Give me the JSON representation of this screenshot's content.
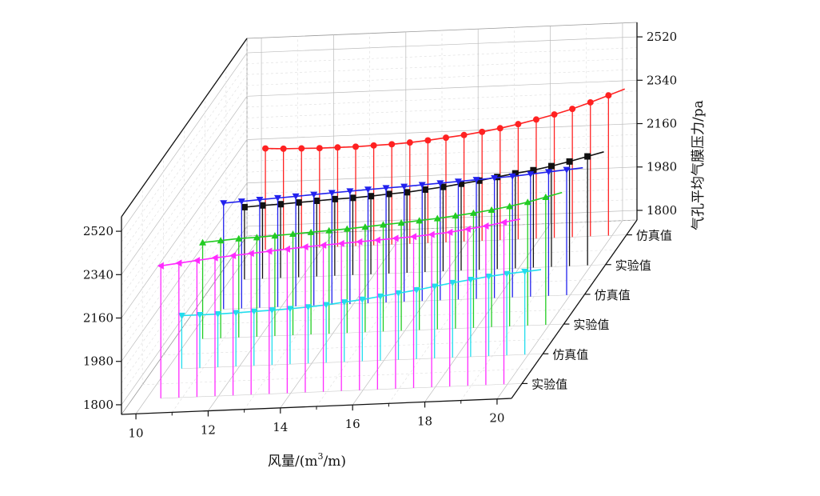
{
  "chart_data": {
    "type": "3d-drop-line",
    "xlabel": "风量/(m³/m)",
    "xlabel_main": "风量/(m",
    "xlabel_sup": "3",
    "xlabel_tail": "/m)",
    "zlabel": "气孔平均气膜压力/pa",
    "x_ticks": [
      "10",
      "12",
      "14",
      "16",
      "18",
      "20"
    ],
    "z_ticks_left": [
      "1800",
      "1980",
      "2160",
      "2340",
      "2520"
    ],
    "z_ticks_right": [
      "1800",
      "1980",
      "2160",
      "2340",
      "2520"
    ],
    "zlim": [
      1760,
      2580
    ],
    "xlim": [
      9.6,
      20.4
    ],
    "y_categories": [
      "实验值",
      "仿真值",
      "实验值",
      "仿真值",
      "实验值",
      "仿真值"
    ],
    "x": [
      10.4,
      10.9,
      11.4,
      11.9,
      12.4,
      12.9,
      13.4,
      13.9,
      14.4,
      14.9,
      15.4,
      15.9,
      16.4,
      16.9,
      17.4,
      17.9,
      18.4,
      18.9,
      19.4,
      19.9
    ],
    "series": [
      {
        "category_index": 0,
        "color": "#ff2bff",
        "marker": "triangle-left",
        "values": [
          2310,
          2318,
          2326,
          2334,
          2340,
          2346,
          2352,
          2358,
          2364,
          2368,
          2372,
          2376,
          2380,
          2384,
          2388,
          2394,
          2400,
          2410,
          2420,
          2432
        ]
      },
      {
        "category_index": 1,
        "color": "#22ddee",
        "marker": "triangle-down",
        "values": [
          1980,
          1980,
          1980,
          1982,
          1985,
          1987,
          1990,
          1994,
          2000,
          2008,
          2016,
          2026,
          2036,
          2046,
          2058,
          2070,
          2080,
          2090,
          2098,
          2104
        ]
      },
      {
        "category_index": 2,
        "color": "#22cc22",
        "marker": "triangle-up",
        "values": [
          2160,
          2165,
          2170,
          2172,
          2176,
          2180,
          2184,
          2188,
          2192,
          2197,
          2203,
          2208,
          2214,
          2220,
          2228,
          2236,
          2246,
          2258,
          2272,
          2290
        ]
      },
      {
        "category_index": 3,
        "color": "#2222ee",
        "marker": "triangle-down",
        "values": [
          2200,
          2204,
          2208,
          2212,
          2216,
          2220,
          2224,
          2228,
          2232,
          2235,
          2238,
          2242,
          2246,
          2250,
          2254,
          2258,
          2262,
          2268,
          2274,
          2280
        ]
      },
      {
        "category_index": 4,
        "color": "#111111",
        "marker": "square",
        "values": [
          2060,
          2064,
          2066,
          2070,
          2074,
          2078,
          2080,
          2084,
          2090,
          2094,
          2102,
          2110,
          2120,
          2130,
          2142,
          2154,
          2164,
          2178,
          2194,
          2212
        ]
      },
      {
        "category_index": 5,
        "color": "#ff2222",
        "marker": "circle",
        "values": [
          2180,
          2176,
          2174,
          2172,
          2172,
          2172,
          2174,
          2176,
          2180,
          2186,
          2194,
          2202,
          2212,
          2224,
          2238,
          2254,
          2272,
          2292,
          2316,
          2342
        ]
      }
    ]
  }
}
